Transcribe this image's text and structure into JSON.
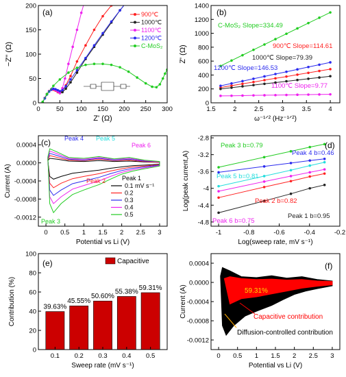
{
  "chart_data": [
    {
      "panel": "(a)",
      "type": "scatter",
      "xlabel": "Z' (Ω)",
      "ylabel": "−Z'' (Ω)",
      "xlim": [
        0,
        300
      ],
      "ylim": [
        0,
        200
      ],
      "xticks": [
        0,
        50,
        100,
        150,
        200,
        250,
        300
      ],
      "yticks": [
        0,
        50,
        100,
        150,
        200
      ],
      "legend_position": "top-right",
      "series": [
        {
          "name": "900℃",
          "color": "#ff2020",
          "marker": "circle",
          "x": [
            10,
            15,
            20,
            25,
            30,
            35,
            40,
            45,
            50,
            56,
            64,
            75,
            90,
            110,
            130,
            150,
            170,
            190,
            200
          ],
          "y": [
            1,
            10,
            18,
            24,
            27,
            27,
            25,
            22,
            20,
            24,
            36,
            55,
            85,
            118,
            150,
            178,
            200,
            215,
            220
          ]
        },
        {
          "name": "1000℃",
          "color": "#222222",
          "marker": "circle",
          "x": [
            10,
            15,
            20,
            25,
            30,
            35,
            40,
            45,
            50,
            56,
            64,
            75,
            90,
            110,
            130,
            150,
            170,
            190,
            210,
            220
          ],
          "y": [
            1,
            10,
            18,
            24,
            28,
            28,
            27,
            24,
            20,
            22,
            29,
            42,
            62,
            90,
            115,
            140,
            165,
            190,
            212,
            222
          ]
        },
        {
          "name": "1100℃",
          "color": "#ee22ee",
          "marker": "circle",
          "x": [
            10,
            15,
            20,
            25,
            30,
            35,
            40,
            45,
            50,
            56,
            62,
            70,
            80,
            90,
            100,
            110
          ],
          "y": [
            1,
            10,
            18,
            24,
            28,
            28,
            26,
            23,
            20,
            30,
            50,
            80,
            115,
            150,
            185,
            215
          ]
        },
        {
          "name": "1200℃",
          "color": "#2a2aee",
          "marker": "circle",
          "x": [
            10,
            15,
            20,
            25,
            30,
            35,
            40,
            45,
            50,
            56,
            64,
            75,
            90,
            110,
            130,
            150,
            170,
            190,
            210,
            220
          ],
          "y": [
            1,
            9,
            17,
            23,
            27,
            29,
            28,
            26,
            24,
            26,
            34,
            48,
            67,
            92,
            118,
            143,
            167,
            190,
            212,
            222
          ]
        },
        {
          "name": "C-MoS₂",
          "color": "#22cc22",
          "marker": "circle",
          "x": [
            10,
            20,
            35,
            50,
            70,
            90,
            110,
            130,
            150,
            170,
            190,
            210,
            230,
            250,
            265,
            275,
            283,
            290,
            295,
            300
          ],
          "y": [
            2,
            18,
            35,
            48,
            62,
            72,
            78,
            80,
            80,
            78,
            73,
            64,
            52,
            40,
            33,
            32,
            38,
            50,
            60,
            68
          ]
        }
      ]
    },
    {
      "panel": "(b)",
      "type": "scatter",
      "xlabel": "ω⁻¹ᐟ² (Hz⁻¹ᐟ²)",
      "ylabel": "Z' (Ω)",
      "xlim": [
        1.5,
        4.2
      ],
      "ylim": [
        0,
        1400
      ],
      "xticks": [
        1.5,
        2.0,
        2.5,
        3.0,
        3.5,
        4.0
      ],
      "yticks": [
        0,
        200,
        400,
        600,
        800,
        1000,
        1200,
        1400
      ],
      "series": [
        {
          "name": "C-MoS₂ Slope=334.49",
          "color": "#22cc22",
          "x": [
            1.7,
            1.93,
            2.16,
            2.39,
            2.62,
            2.85,
            3.08,
            3.31,
            3.54,
            3.77,
            4.0
          ],
          "y": [
            530,
            608,
            685,
            762,
            839,
            916,
            993,
            1070,
            1147,
            1224,
            1300
          ]
        },
        {
          "name": "900℃ Slope=114.61",
          "color": "#ff2020",
          "x": [
            1.7,
            1.93,
            2.16,
            2.39,
            2.62,
            2.85,
            3.08,
            3.31,
            3.54,
            3.77,
            4.0
          ],
          "y": [
            220,
            246,
            273,
            299,
            326,
            352,
            378,
            405,
            431,
            458,
            484
          ]
        },
        {
          "name": "1000℃ Slope=79.39",
          "color": "#222222",
          "x": [
            1.7,
            1.93,
            2.16,
            2.39,
            2.62,
            2.85,
            3.08,
            3.31,
            3.54,
            3.77,
            4.0
          ],
          "y": [
            200,
            218,
            237,
            255,
            273,
            291,
            310,
            328,
            346,
            364,
            383
          ]
        },
        {
          "name": "1200℃ Slope=146.53",
          "color": "#2a2aee",
          "x": [
            1.7,
            1.93,
            2.16,
            2.39,
            2.62,
            2.85,
            3.08,
            3.31,
            3.54,
            3.77,
            4.0
          ],
          "y": [
            245,
            279,
            312,
            346,
            380,
            414,
            447,
            481,
            515,
            548,
            582
          ]
        },
        {
          "name": "1100℃ Slope=9.77",
          "color": "#ee22ee",
          "x": [
            1.7,
            1.93,
            2.16,
            2.39,
            2.62,
            2.85,
            3.08,
            3.31,
            3.54,
            3.77,
            4.0
          ],
          "y": [
            100,
            102,
            104,
            107,
            109,
            111,
            113,
            116,
            118,
            120,
            122
          ]
        }
      ]
    },
    {
      "panel": "(c)",
      "type": "line",
      "xlabel": "Potential vs Li (V)",
      "ylabel": "Current (A)",
      "xlim": [
        -0.2,
        3.2
      ],
      "ylim": [
        -0.0014,
        0.0006
      ],
      "xticks": [
        0.0,
        0.5,
        1.0,
        1.5,
        2.0,
        2.5,
        3.0
      ],
      "yticks": [
        0.0004,
        0.0,
        -0.0004,
        -0.0008,
        -0.0012
      ],
      "ytick_labels": [
        "0.0004",
        "0.0000",
        "-0.0004",
        "-0.0008",
        "-0.0012"
      ],
      "legend_title": "Peak 1",
      "annotations": [
        "Peak 4",
        "Peak 5",
        "Peak 6",
        "Peak 2",
        "Peak 3"
      ],
      "series": [
        {
          "name": "0.1 mV s⁻¹",
          "color": "#000000",
          "x": [
            0.05,
            0.1,
            0.3,
            0.6,
            1.0,
            1.4,
            1.8,
            2.2,
            2.6,
            3.0,
            3.0,
            2.6,
            2.3,
            2.0,
            1.7,
            1.4,
            1.2,
            1.0,
            0.7,
            0.4,
            0.2,
            0.1,
            0.05
          ],
          "y": [
            5e-05,
            0.0001,
            8e-05,
            4e-05,
            3e-05,
            5e-05,
            3e-05,
            4e-05,
            2e-05,
            1e-05,
            -3e-05,
            -5e-05,
            -6e-05,
            -9e-05,
            -0.00012,
            -0.00016,
            -0.00018,
            -0.0002,
            -0.00023,
            -0.0003,
            -0.00036,
            -0.0003,
            5e-05
          ]
        },
        {
          "name": "0.2",
          "color": "#ff2020",
          "x": [
            0.05,
            0.1,
            0.3,
            0.6,
            1.0,
            1.4,
            1.8,
            2.2,
            2.6,
            3.0,
            3.0,
            2.6,
            2.3,
            2.0,
            1.7,
            1.4,
            1.2,
            1.0,
            0.7,
            0.4,
            0.2,
            0.1,
            0.05
          ],
          "y": [
            7e-05,
            0.00016,
            0.00012,
            6e-05,
            5e-05,
            8e-05,
            5e-05,
            6e-05,
            3e-05,
            1e-05,
            -4e-05,
            -7e-05,
            -9e-05,
            -0.00013,
            -0.00018,
            -0.00024,
            -0.00027,
            -0.0003,
            -0.00035,
            -0.00045,
            -0.00055,
            -0.00045,
            7e-05
          ]
        },
        {
          "name": "0.3",
          "color": "#2a2aee",
          "x": [
            0.05,
            0.1,
            0.3,
            0.6,
            1.0,
            1.4,
            1.8,
            2.2,
            2.6,
            3.0,
            3.0,
            2.6,
            2.3,
            2.0,
            1.7,
            1.4,
            1.2,
            1.0,
            0.7,
            0.4,
            0.2,
            0.1,
            0.05
          ],
          "y": [
            9e-05,
            0.00021,
            0.00016,
            8e-05,
            6e-05,
            0.0001,
            6e-05,
            8e-05,
            4e-05,
            2e-05,
            -5e-05,
            -9e-05,
            -0.00012,
            -0.00017,
            -0.00024,
            -0.00032,
            -0.00036,
            -0.0004,
            -0.00046,
            -0.0006,
            -0.00072,
            -0.0006,
            9e-05
          ]
        },
        {
          "name": "0.4",
          "color": "#ee22ee",
          "x": [
            0.05,
            0.1,
            0.3,
            0.6,
            1.0,
            1.4,
            1.8,
            2.2,
            2.6,
            3.0,
            3.0,
            2.6,
            2.3,
            2.0,
            1.7,
            1.4,
            1.2,
            1.0,
            0.7,
            0.4,
            0.2,
            0.1,
            0.05
          ],
          "y": [
            0.00011,
            0.00026,
            0.0002,
            0.0001,
            8e-05,
            0.00012,
            8e-05,
            0.0001,
            5e-05,
            2e-05,
            -6e-05,
            -0.00011,
            -0.00015,
            -0.00021,
            -0.0003,
            -0.0004,
            -0.00045,
            -0.0005,
            -0.00058,
            -0.00075,
            -0.0009,
            -0.00075,
            0.00011
          ]
        },
        {
          "name": "0.5",
          "color": "#22cc22",
          "x": [
            0.05,
            0.1,
            0.3,
            0.6,
            1.0,
            1.4,
            1.8,
            2.2,
            2.6,
            3.0,
            3.0,
            2.6,
            2.3,
            2.0,
            1.7,
            1.4,
            1.2,
            1.0,
            0.7,
            0.4,
            0.2,
            0.1,
            0.05
          ],
          "y": [
            0.00013,
            0.00031,
            0.00024,
            0.00012,
            0.0001,
            0.00014,
            9e-05,
            0.00012,
            6e-05,
            3e-05,
            -7e-05,
            -0.00013,
            -0.00018,
            -0.00025,
            -0.00036,
            -0.00048,
            -0.00054,
            -0.0006,
            -0.0007,
            -0.0009,
            -0.0011,
            -0.0009,
            0.00013
          ]
        }
      ]
    },
    {
      "panel": "(d)",
      "type": "scatter",
      "xlabel": "Log(sweep rate, mV s⁻¹)",
      "ylabel": "Log(peak current,A)",
      "xlim": [
        -1.05,
        -0.2
      ],
      "ylim": [
        -4.9,
        -2.75
      ],
      "xticks": [
        -1.0,
        -0.8,
        -0.6,
        -0.4,
        -0.2
      ],
      "yticks": [
        -2.8,
        -3.2,
        -3.6,
        -4.0,
        -4.4,
        -4.8
      ],
      "series": [
        {
          "name": "Peak 3 b=0.79",
          "color": "#22cc22",
          "x": [
            -1.0,
            -0.699,
            -0.523,
            -0.398,
            -0.301
          ],
          "y": [
            -3.5,
            -3.26,
            -3.12,
            -3.02,
            -2.95
          ]
        },
        {
          "name": "Peak 4 b=0.46",
          "color": "#2a2aee",
          "x": [
            -1.0,
            -0.699,
            -0.523,
            -0.398,
            -0.301
          ],
          "y": [
            -3.62,
            -3.48,
            -3.4,
            -3.34,
            -3.3
          ]
        },
        {
          "name": "Peak 5 b=0.81",
          "color": "#22dddd",
          "x": [
            -1.0,
            -0.699,
            -0.523,
            -0.398,
            -0.301
          ],
          "y": [
            -3.95,
            -3.71,
            -3.57,
            -3.46,
            -3.38
          ]
        },
        {
          "name": "Peak 6 b=0.75",
          "color": "#ee22ee",
          "x": [
            -1.0,
            -0.699,
            -0.523,
            -0.398,
            -0.301
          ],
          "y": [
            -4.07,
            -3.84,
            -3.71,
            -3.62,
            -3.55
          ]
        },
        {
          "name": "Peak 2 b=0.82",
          "color": "#ff2020",
          "x": [
            -1.0,
            -0.699,
            -0.523,
            -0.398,
            -0.301
          ],
          "y": [
            -4.22,
            -3.97,
            -3.83,
            -3.72,
            -3.65
          ]
        },
        {
          "name": "Peak 1 b=0.95",
          "color": "#222222",
          "x": [
            -1.0,
            -0.699,
            -0.523,
            -0.398,
            -0.301
          ],
          "y": [
            -4.58,
            -4.3,
            -4.13,
            -4.0,
            -3.92
          ]
        }
      ]
    },
    {
      "panel": "(e)",
      "type": "bar",
      "xlabel": "Sweep rate (mV s⁻¹)",
      "ylabel": "Contribution (%)",
      "categories": [
        "0.1",
        "0.2",
        "0.3",
        "0.4",
        "0.5"
      ],
      "values": [
        39.63,
        45.55,
        50.6,
        55.38,
        59.31
      ],
      "labels": [
        "39.63%",
        "45.55%",
        "50.60%",
        "55.38%",
        "59.31%"
      ],
      "series_name": "Capacitive",
      "color": "#cc0000",
      "ylim": [
        0,
        100
      ],
      "yticks": [
        0,
        20,
        40,
        60,
        80,
        100
      ],
      "legend_position": "top-right"
    },
    {
      "panel": "(f)",
      "type": "area",
      "xlabel": "Potential vs Li (V)",
      "ylabel": "Current (A)",
      "xlim": [
        -0.2,
        3.2
      ],
      "ylim": [
        -0.0014,
        0.0006
      ],
      "xticks": [
        0.0,
        0.5,
        1.0,
        1.5,
        2.0,
        2.5,
        3.0
      ],
      "yticks": [
        0.0004,
        0.0,
        -0.0004,
        -0.0008,
        -0.0012
      ],
      "ytick_labels": [
        "0.0004",
        "0.0000",
        "-0.0004",
        "-0.0008",
        "-0.0012"
      ],
      "percent_label": "59.31%",
      "annotations": [
        "Capacitive contribution",
        "Diffusion-controlled contribution"
      ],
      "total_color": "#000000",
      "capacitive_color": "#ff0000",
      "total_loop": {
        "x": [
          0.05,
          0.1,
          0.3,
          0.6,
          1.0,
          1.4,
          1.8,
          2.2,
          2.6,
          3.0,
          3.0,
          2.6,
          2.3,
          2.0,
          1.7,
          1.4,
          1.2,
          1.0,
          0.7,
          0.4,
          0.2,
          0.1,
          0.05
        ],
        "y": [
          0.00013,
          0.00031,
          0.00024,
          0.00012,
          0.0001,
          0.00014,
          9e-05,
          0.00012,
          6e-05,
          3e-05,
          -7e-05,
          -0.00013,
          -0.00018,
          -0.00025,
          -0.00036,
          -0.00048,
          -0.00054,
          -0.0006,
          -0.0007,
          -0.0009,
          -0.0011,
          -0.0009,
          0.00013
        ]
      },
      "capacitive_loop": {
        "x": [
          0.15,
          0.3,
          0.6,
          1.0,
          1.4,
          1.8,
          2.2,
          2.6,
          3.0,
          3.0,
          2.6,
          2.2,
          1.8,
          1.4,
          1.0,
          0.6,
          0.3,
          0.15
        ],
        "y": [
          8e-05,
          0.00012,
          8e-05,
          6e-05,
          7e-05,
          5e-05,
          6e-05,
          3e-05,
          2e-05,
          -5e-05,
          -8e-05,
          -0.00012,
          -0.00018,
          -0.00024,
          -0.0003,
          -0.00034,
          -0.00045,
          8e-05
        ]
      }
    }
  ]
}
